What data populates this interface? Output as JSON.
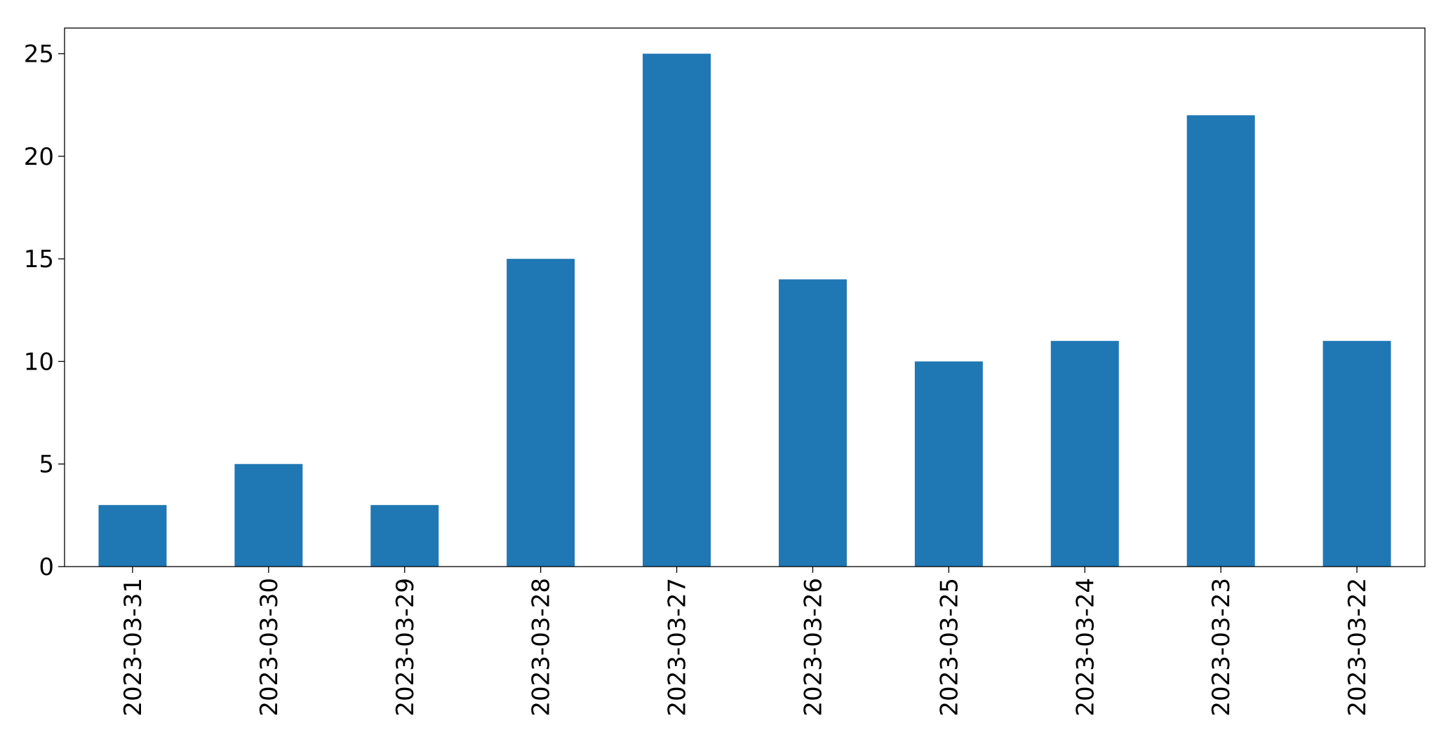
{
  "chart_data": {
    "type": "bar",
    "categories": [
      "2023-03-31",
      "2023-03-30",
      "2023-03-29",
      "2023-03-28",
      "2023-03-27",
      "2023-03-26",
      "2023-03-25",
      "2023-03-24",
      "2023-03-23",
      "2023-03-22"
    ],
    "values": [
      3,
      5,
      3,
      15,
      25,
      14,
      10,
      11,
      22,
      11
    ],
    "color": "#1f77b4",
    "ylim": [
      0,
      26.25
    ],
    "yticks": [
      0,
      5,
      10,
      15,
      20,
      25
    ],
    "grid": false
  }
}
